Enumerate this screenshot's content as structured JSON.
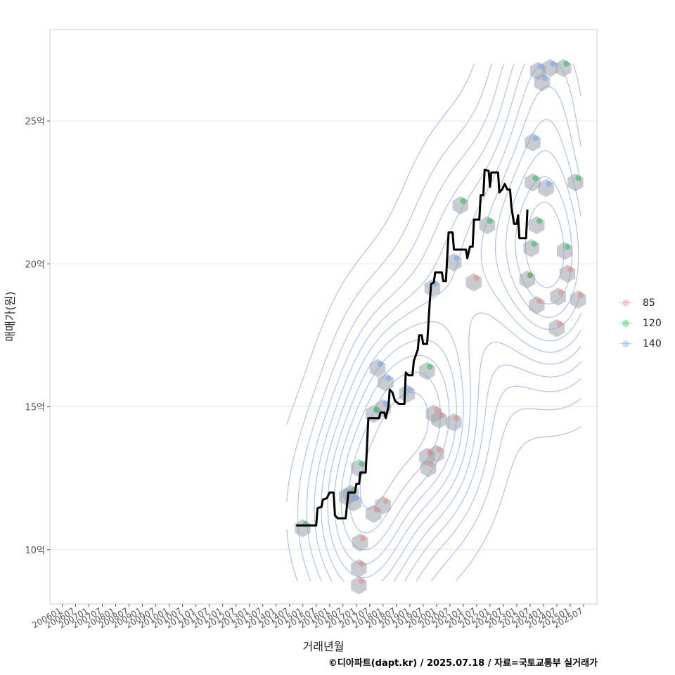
{
  "chart_data": {
    "type": "scatter",
    "xlabel": "거래년월",
    "ylabel": "매매가(원)",
    "ylim": [
      8.1,
      28.2
    ],
    "x_ticks": [
      "200601",
      "200607",
      "200701",
      "200707",
      "200801",
      "200807",
      "200901",
      "200907",
      "201001",
      "201007",
      "201101",
      "201107",
      "201201",
      "201207",
      "201301",
      "201307",
      "201401",
      "201407",
      "201501",
      "201507",
      "201601",
      "201607",
      "201701",
      "201707",
      "201801",
      "201807",
      "201901",
      "201907",
      "202001",
      "202007",
      "202101",
      "202107",
      "202201",
      "202207",
      "202301",
      "202307",
      "202401",
      "202407",
      "202501",
      "202507"
    ],
    "y_ticks": [
      {
        "value": 10,
        "label": "10억"
      },
      {
        "value": 15,
        "label": "15억"
      },
      {
        "value": 20,
        "label": "20억"
      },
      {
        "value": 25,
        "label": "25억"
      }
    ],
    "colors": {
      "85": "#f8766d",
      "120": "#00ba38",
      "140": "#619cff",
      "line": "#000000",
      "contour": "#9fb6ee",
      "hex": "#9aa3ab",
      "grid": "#e8e8e8"
    },
    "legend": {
      "position": "right",
      "items": [
        {
          "name": "85",
          "color": "#f8766d"
        },
        {
          "name": "120",
          "color": "#00ba38"
        },
        {
          "name": "140",
          "color": "#619cff"
        }
      ]
    },
    "series": [
      {
        "name": "85",
        "points": [
          [
            2017.25,
            10.4
          ],
          [
            2017.2,
            9.5
          ],
          [
            2017.2,
            8.9
          ],
          [
            2017.75,
            11.4
          ],
          [
            2018.1,
            11.7
          ],
          [
            2019.75,
            13.4
          ],
          [
            2019.8,
            13.0
          ],
          [
            2020.1,
            13.5
          ],
          [
            2020.0,
            14.9
          ],
          [
            2020.2,
            14.7
          ],
          [
            2020.75,
            14.6
          ],
          [
            2021.5,
            19.5
          ],
          [
            2023.5,
            19.6
          ],
          [
            2023.85,
            18.7
          ],
          [
            2024.6,
            17.9
          ],
          [
            2024.65,
            19.0
          ],
          [
            2025.0,
            19.8
          ],
          [
            2025.4,
            18.9
          ]
        ]
      },
      {
        "name": "120",
        "points": [
          [
            2015.1,
            10.9
          ],
          [
            2016.9,
            12.1
          ],
          [
            2017.2,
            13.0
          ],
          [
            2017.75,
            14.9
          ],
          [
            2019.75,
            16.4
          ],
          [
            2021.0,
            22.2
          ],
          [
            2022.0,
            21.5
          ],
          [
            2023.5,
            19.6
          ],
          [
            2023.65,
            20.7
          ],
          [
            2023.85,
            21.5
          ],
          [
            2023.7,
            23.0
          ],
          [
            2024.85,
            27.0
          ],
          [
            2024.9,
            20.6
          ],
          [
            2025.3,
            23.0
          ]
        ]
      },
      {
        "name": "140",
        "points": [
          [
            2016.75,
            12.0
          ],
          [
            2017.0,
            11.8
          ],
          [
            2017.9,
            16.5
          ],
          [
            2018.2,
            16.0
          ],
          [
            2018.1,
            15.1
          ],
          [
            2019.0,
            15.6
          ],
          [
            2019.95,
            19.3
          ],
          [
            2020.75,
            20.2
          ],
          [
            2023.7,
            24.4
          ],
          [
            2023.9,
            26.9
          ],
          [
            2024.05,
            26.5
          ],
          [
            2024.35,
            27.0
          ],
          [
            2024.2,
            22.8
          ]
        ]
      }
    ],
    "trend_line": [
      [
        2014.75,
        10.85
      ],
      [
        2015.5,
        10.85
      ],
      [
        2015.55,
        11.45
      ],
      [
        2015.7,
        11.5
      ],
      [
        2015.75,
        11.75
      ],
      [
        2015.9,
        11.8
      ],
      [
        2016.0,
        12.0
      ],
      [
        2016.15,
        12.0
      ],
      [
        2016.2,
        11.2
      ],
      [
        2016.3,
        11.1
      ],
      [
        2016.6,
        11.1
      ],
      [
        2016.7,
        12.0
      ],
      [
        2016.95,
        12.0
      ],
      [
        2017.0,
        12.3
      ],
      [
        2017.1,
        12.3
      ],
      [
        2017.15,
        12.7
      ],
      [
        2017.35,
        12.7
      ],
      [
        2017.45,
        14.6
      ],
      [
        2017.85,
        14.6
      ],
      [
        2017.9,
        14.8
      ],
      [
        2018.05,
        14.8
      ],
      [
        2018.1,
        14.6
      ],
      [
        2018.2,
        15.0
      ],
      [
        2018.25,
        15.6
      ],
      [
        2018.35,
        15.5
      ],
      [
        2018.45,
        15.2
      ],
      [
        2018.6,
        15.1
      ],
      [
        2018.8,
        15.1
      ],
      [
        2018.85,
        16.2
      ],
      [
        2018.95,
        16.1
      ],
      [
        2019.1,
        16.1
      ],
      [
        2019.15,
        16.6
      ],
      [
        2019.3,
        17.0
      ],
      [
        2019.35,
        17.5
      ],
      [
        2019.45,
        17.5
      ],
      [
        2019.5,
        17.2
      ],
      [
        2019.65,
        17.2
      ],
      [
        2019.75,
        18.7
      ],
      [
        2019.8,
        19.3
      ],
      [
        2019.9,
        19.35
      ],
      [
        2019.95,
        19.7
      ],
      [
        2020.2,
        19.7
      ],
      [
        2020.25,
        19.4
      ],
      [
        2020.35,
        19.4
      ],
      [
        2020.45,
        21.1
      ],
      [
        2020.6,
        21.1
      ],
      [
        2020.65,
        20.5
      ],
      [
        2021.1,
        20.5
      ],
      [
        2021.15,
        20.2
      ],
      [
        2021.25,
        20.6
      ],
      [
        2021.35,
        20.6
      ],
      [
        2021.4,
        21.55
      ],
      [
        2021.6,
        21.55
      ],
      [
        2021.65,
        22.4
      ],
      [
        2021.75,
        22.4
      ],
      [
        2021.8,
        23.3
      ],
      [
        2021.95,
        23.25
      ],
      [
        2022.0,
        22.7
      ],
      [
        2022.05,
        23.2
      ],
      [
        2022.3,
        23.2
      ],
      [
        2022.35,
        22.5
      ],
      [
        2022.45,
        22.6
      ],
      [
        2022.5,
        22.7
      ],
      [
        2022.55,
        22.8
      ],
      [
        2022.65,
        22.6
      ],
      [
        2022.75,
        22.6
      ],
      [
        2022.8,
        22.0
      ],
      [
        2022.9,
        21.4
      ],
      [
        2023.0,
        21.4
      ],
      [
        2023.05,
        21.7
      ],
      [
        2023.1,
        20.9
      ],
      [
        2023.35,
        20.9
      ],
      [
        2023.4,
        21.9
      ]
    ]
  },
  "caption": "©디아파트(dapt.kr) / 2025.07.18 / 자료=국토교통부 실거래가"
}
